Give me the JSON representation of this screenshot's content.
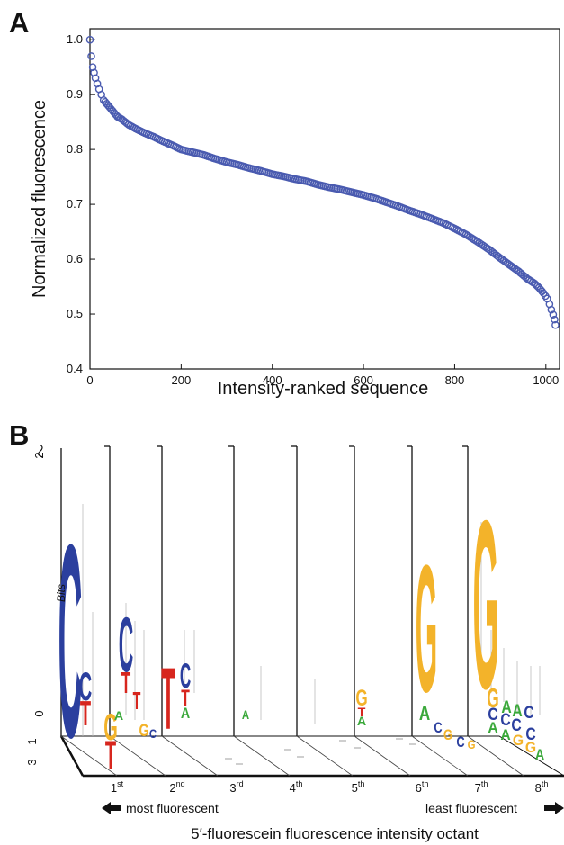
{
  "panel_a": {
    "letter": "A",
    "chart_data": {
      "type": "scatter",
      "xlabel": "Intensity-ranked sequence",
      "ylabel": "Normalized fluorescence",
      "xlim": [
        0,
        1030
      ],
      "ylim": [
        0.4,
        1.02
      ],
      "x_ticks": [
        "0",
        "200",
        "400",
        "600",
        "800",
        "1000"
      ],
      "y_ticks": [
        "0.4",
        "0.5",
        "0.6",
        "0.7",
        "0.8",
        "0.9",
        "1.0"
      ],
      "marker_color": "#4a5bb0",
      "marker": "open-circle",
      "grid": false,
      "points": [
        [
          0,
          1.0
        ],
        [
          3,
          0.97
        ],
        [
          6,
          0.95
        ],
        [
          9,
          0.94
        ],
        [
          12,
          0.93
        ],
        [
          16,
          0.92
        ],
        [
          20,
          0.91
        ],
        [
          25,
          0.9
        ],
        [
          30,
          0.89
        ],
        [
          40,
          0.88
        ],
        [
          50,
          0.87
        ],
        [
          60,
          0.86
        ],
        [
          70,
          0.855
        ],
        [
          85,
          0.845
        ],
        [
          100,
          0.838
        ],
        [
          120,
          0.83
        ],
        [
          140,
          0.823
        ],
        [
          160,
          0.815
        ],
        [
          180,
          0.808
        ],
        [
          200,
          0.8
        ],
        [
          225,
          0.795
        ],
        [
          250,
          0.79
        ],
        [
          275,
          0.783
        ],
        [
          300,
          0.777
        ],
        [
          325,
          0.772
        ],
        [
          350,
          0.766
        ],
        [
          375,
          0.761
        ],
        [
          400,
          0.755
        ],
        [
          425,
          0.751
        ],
        [
          450,
          0.746
        ],
        [
          475,
          0.742
        ],
        [
          500,
          0.736
        ],
        [
          525,
          0.731
        ],
        [
          550,
          0.727
        ],
        [
          575,
          0.722
        ],
        [
          600,
          0.717
        ],
        [
          625,
          0.711
        ],
        [
          650,
          0.704
        ],
        [
          675,
          0.697
        ],
        [
          700,
          0.689
        ],
        [
          725,
          0.682
        ],
        [
          750,
          0.674
        ],
        [
          775,
          0.666
        ],
        [
          800,
          0.656
        ],
        [
          825,
          0.645
        ],
        [
          850,
          0.632
        ],
        [
          875,
          0.618
        ],
        [
          900,
          0.602
        ],
        [
          920,
          0.59
        ],
        [
          940,
          0.578
        ],
        [
          960,
          0.564
        ],
        [
          975,
          0.556
        ],
        [
          985,
          0.548
        ],
        [
          995,
          0.538
        ],
        [
          1003,
          0.528
        ],
        [
          1008,
          0.518
        ],
        [
          1012,
          0.508
        ],
        [
          1016,
          0.499
        ],
        [
          1019,
          0.49
        ],
        [
          1021,
          0.48
        ]
      ]
    }
  },
  "panel_b": {
    "letter": "B",
    "axis_label": "Bits",
    "ytick_top": "2",
    "ytick_bottom": "0",
    "depth_tick_1": "1",
    "depth_tick_2": "3",
    "octants": [
      {
        "num": "1",
        "sup": "st"
      },
      {
        "num": "2",
        "sup": "nd"
      },
      {
        "num": "3",
        "sup": "rd"
      },
      {
        "num": "4",
        "sup": "th"
      },
      {
        "num": "5",
        "sup": "th"
      },
      {
        "num": "6",
        "sup": "th"
      },
      {
        "num": "7",
        "sup": "th"
      },
      {
        "num": "8",
        "sup": "th"
      }
    ],
    "most_label": "most fluorescent",
    "least_label": "least fluorescent",
    "bottom_title": "5′-fluorescein fluorescence intensity octant",
    "colors": {
      "C": "#2b3f9e",
      "G": "#f3b32a",
      "T": "#d7261e",
      "A": "#3aa83a"
    }
  }
}
